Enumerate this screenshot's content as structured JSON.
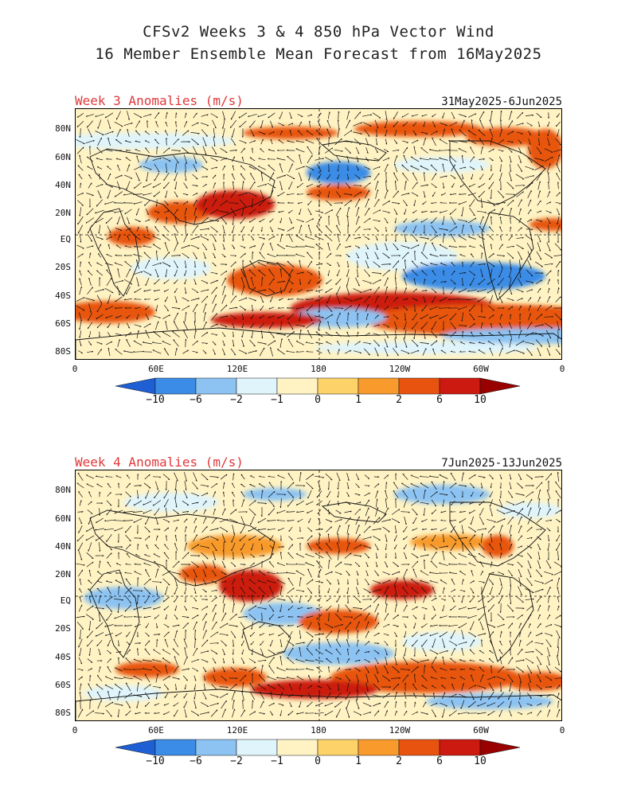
{
  "title": {
    "line1": "CFSv2 Weeks 3 & 4 850 hPa Vector Wind",
    "line2": "16 Member Ensemble Mean Forecast from 16May2025"
  },
  "colors": {
    "levels": [
      "#1e5fd4",
      "#3b8ce6",
      "#8cc3f2",
      "#dff4fb",
      "#fff3c4",
      "#fcd269",
      "#f89a2c",
      "#e8540f",
      "#cc1a10",
      "#990000"
    ]
  },
  "colorbar": {
    "labels": [
      "-10",
      "-6",
      "-2",
      "-1",
      "0",
      "1",
      "2",
      "6",
      "10"
    ]
  },
  "axes": {
    "lat_labels": [
      "80N",
      "60N",
      "40N",
      "20N",
      "EQ",
      "20S",
      "40S",
      "60S",
      "80S"
    ],
    "lon_labels": [
      "0",
      "60E",
      "120E",
      "180",
      "120W",
      "60W",
      "0"
    ]
  },
  "panels": [
    {
      "label": "Week 3 Anomalies (m/s)",
      "dates": "31May2025-6Jun2025"
    },
    {
      "label": "Week 4 Anomalies (m/s)",
      "dates": "7Jun2025-13Jun2025"
    }
  ]
}
